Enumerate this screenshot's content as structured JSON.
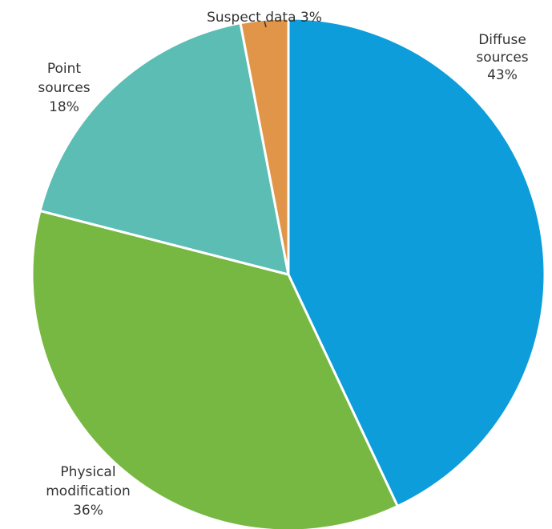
{
  "chart_data": {
    "type": "pie",
    "title": "",
    "slices": [
      {
        "name": "Diffuse sources",
        "value": 43,
        "value_label": "43%",
        "color": "#0d9ddb",
        "label_lines": [
          "Diffuse",
          "sources",
          "43%"
        ]
      },
      {
        "name": "Physical modification",
        "value": 36,
        "value_label": "36%",
        "color": "#77b843",
        "label_lines": [
          "Physical",
          "modification",
          "36%"
        ]
      },
      {
        "name": "Point sources",
        "value": 18,
        "value_label": "18%",
        "color": "#5bbdb3",
        "label_lines": [
          "Point",
          "sources",
          "18%"
        ]
      },
      {
        "name": "Suspect data",
        "value": 3,
        "value_label": "3%",
        "color": "#e19549",
        "label_lines": [
          "Suspect data 3%"
        ]
      }
    ]
  }
}
